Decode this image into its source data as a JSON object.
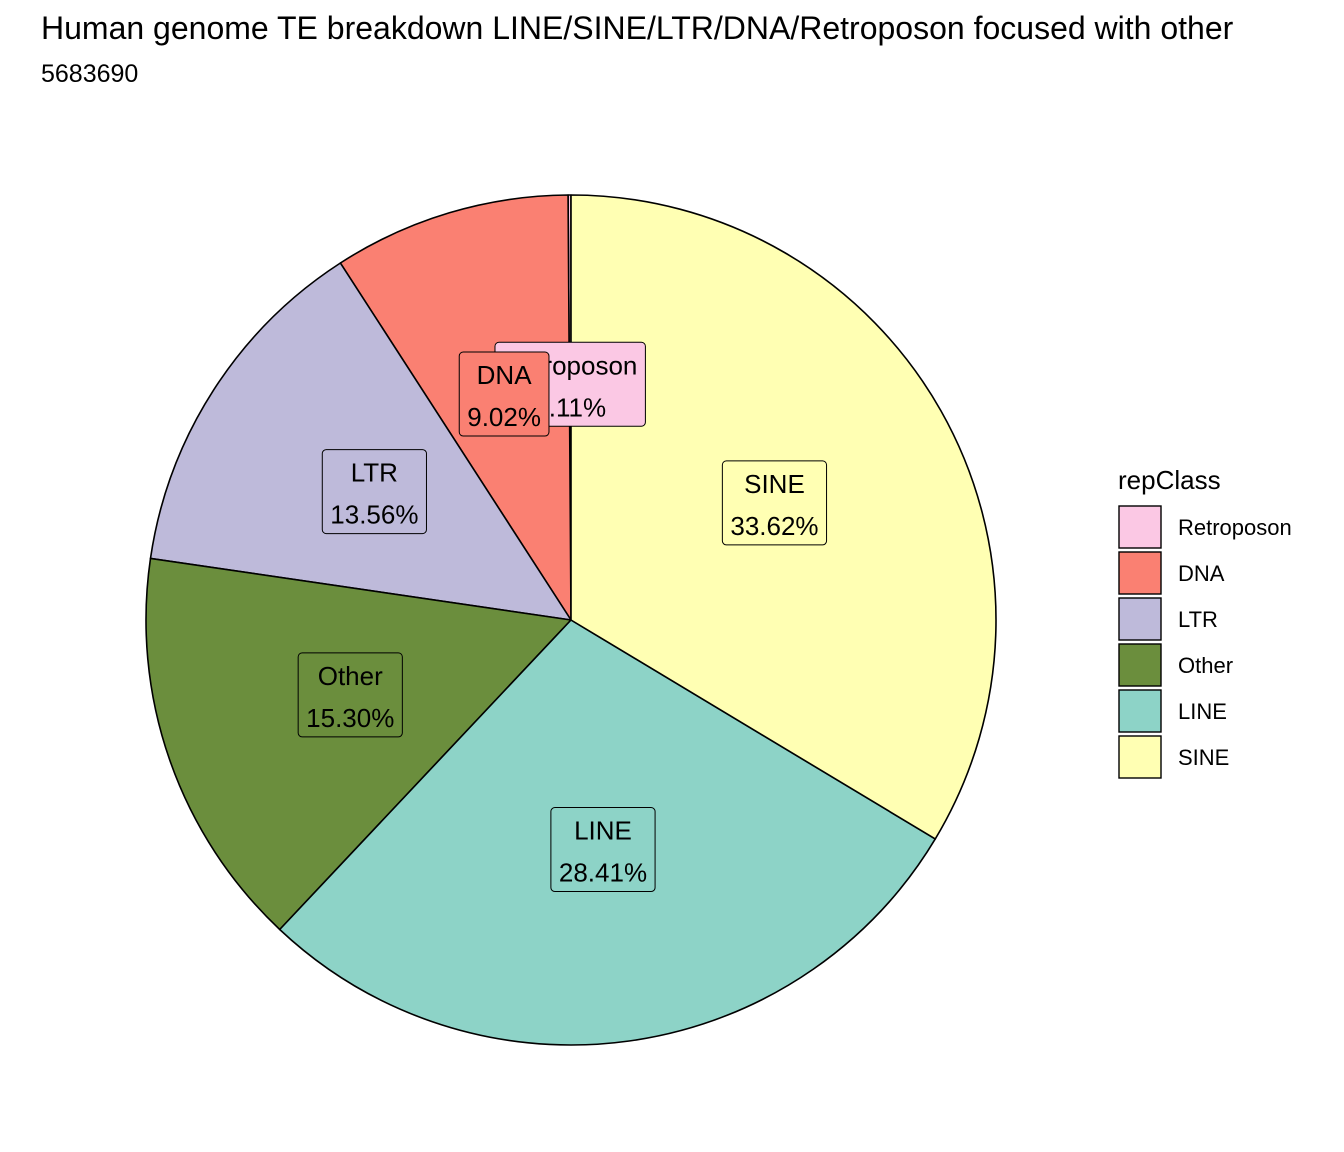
{
  "chart_data": {
    "type": "pie",
    "title": "Human genome TE breakdown LINE/SINE/LTR/DNA/Retroposon focused with other",
    "subtitle": "5683690",
    "legend_title": "repClass",
    "legend_position": "right",
    "slices": [
      {
        "name": "Retroposon",
        "value": 0.11,
        "label": "0.11%",
        "color": "#FBC8E4"
      },
      {
        "name": "DNA",
        "value": 9.02,
        "label": "9.02%",
        "color": "#FA8072"
      },
      {
        "name": "LTR",
        "value": 13.56,
        "label": "13.56%",
        "color": "#BEBADA"
      },
      {
        "name": "Other",
        "value": 15.3,
        "label": "15.30%",
        "color": "#6B8E3D"
      },
      {
        "name": "LINE",
        "value": 28.41,
        "label": "28.41%",
        "color": "#8DD3C7"
      },
      {
        "name": "SINE",
        "value": 33.62,
        "label": "33.62%",
        "color": "#FFFFB3"
      }
    ]
  }
}
